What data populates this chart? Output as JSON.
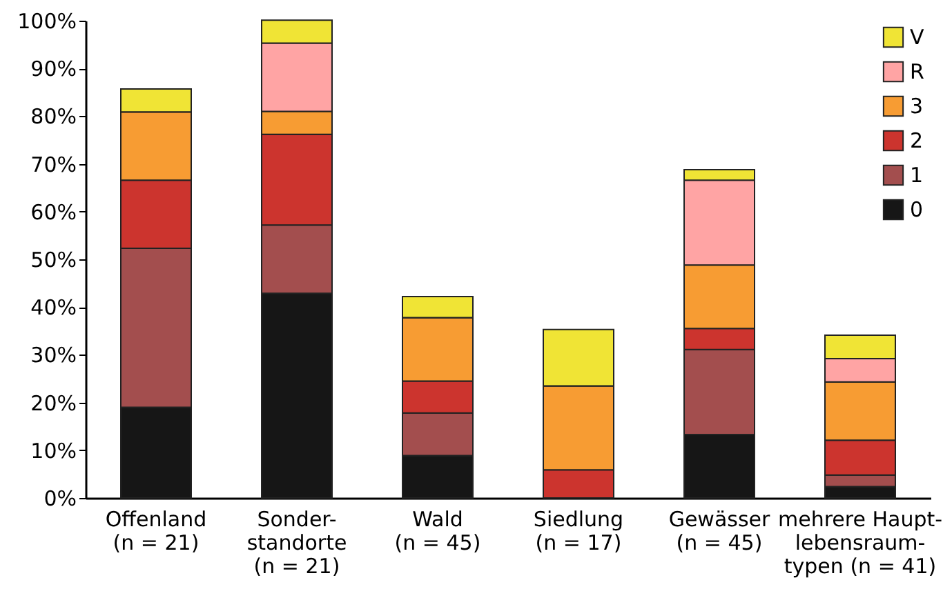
{
  "chart_data": {
    "type": "bar",
    "stacked": true,
    "categories": [
      "Offenland\n(n = 21)",
      "Sonder-\nstandorte\n(n = 21)",
      "Wald\n(n = 45)",
      "Siedlung\n(n = 17)",
      "Gewässer\n(n = 45)",
      "mehrere Haupt-\nlebensraum-\ntypen (n = 41)"
    ],
    "series": [
      {
        "name": "0",
        "color": "#161616",
        "values": [
          19.0,
          42.9,
          8.9,
          0,
          13.3,
          2.4
        ]
      },
      {
        "name": "1",
        "color": "#a34e4e",
        "values": [
          33.3,
          14.3,
          8.9,
          0,
          17.8,
          2.4
        ]
      },
      {
        "name": "2",
        "color": "#cc342e",
        "values": [
          14.3,
          19.0,
          6.7,
          5.9,
          4.4,
          7.3
        ]
      },
      {
        "name": "3",
        "color": "#f79c33",
        "values": [
          14.3,
          4.8,
          13.3,
          17.6,
          13.3,
          12.2
        ]
      },
      {
        "name": "R",
        "color": "#ffa4a4",
        "values": [
          0,
          14.3,
          0,
          0,
          17.8,
          4.9
        ]
      },
      {
        "name": "V",
        "color": "#f0e435",
        "values": [
          4.8,
          4.8,
          4.4,
          11.8,
          2.2,
          4.9
        ]
      }
    ],
    "ylim": [
      0,
      100
    ],
    "yticks": [
      {
        "value": 0,
        "label": "0%"
      },
      {
        "value": 10,
        "label": "10%"
      },
      {
        "value": 20,
        "label": "20%"
      },
      {
        "value": 30,
        "label": "30%"
      },
      {
        "value": 40,
        "label": "40%"
      },
      {
        "value": 50,
        "label": "50%"
      },
      {
        "value": 60,
        "label": "60%"
      },
      {
        "value": 70,
        "label": "70%"
      },
      {
        "value": 80,
        "label": "80%"
      },
      {
        "value": 90,
        "label": "90%"
      },
      {
        "value": 100,
        "label": "100%"
      }
    ],
    "grid": false,
    "legend": "top right"
  }
}
